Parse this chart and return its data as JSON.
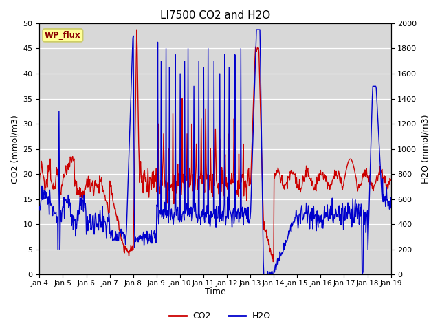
{
  "title": "LI7500 CO2 and H2O",
  "xlabel": "Time",
  "ylabel_left": "CO2 (mmol/m3)",
  "ylabel_right": "H2O (mmol/m3)",
  "ylim_left": [
    0,
    50
  ],
  "ylim_right": [
    0,
    2000
  ],
  "yticks_left": [
    0,
    5,
    10,
    15,
    20,
    25,
    30,
    35,
    40,
    45,
    50
  ],
  "yticks_right": [
    0,
    200,
    400,
    600,
    800,
    1000,
    1200,
    1400,
    1600,
    1800,
    2000
  ],
  "xtick_labels": [
    "Jan 4",
    "Jan 5",
    "Jan 6",
    "Jan 7",
    "Jan 8",
    "Jan 9",
    "Jan 10",
    "Jan 11",
    "Jan 12",
    "Jan 13",
    "Jan 14",
    "Jan 15",
    "Jan 16",
    "Jan 17",
    "Jan 18",
    "Jan 19"
  ],
  "co2_color": "#CC0000",
  "h2o_color": "#0000CC",
  "bg_color": "#D8D8D8",
  "outer_bg": "#FFFFFF",
  "wp_flux_label": "WP_flux",
  "wp_flux_bg": "#FFFF99",
  "wp_flux_border": "#CCCC66",
  "legend_co2": "CO2",
  "legend_h2o": "H2O",
  "line_width": 1.0
}
